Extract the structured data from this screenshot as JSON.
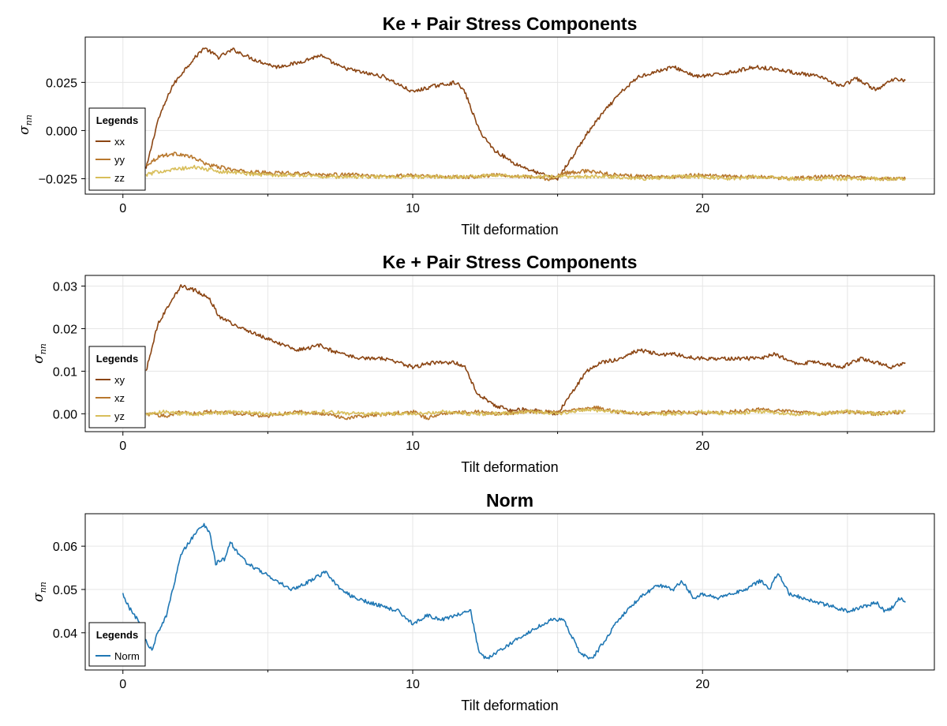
{
  "chart_data": [
    {
      "type": "line",
      "title": "Ke + Pair Stress Components",
      "xlabel": "Tilt deformation",
      "ylabel": "σ_nn",
      "xlim": [
        -1.3,
        28.0
      ],
      "ylim": [
        -0.033,
        0.0485
      ],
      "xticks": [
        0,
        10,
        20
      ],
      "xtick_labels": [
        "0",
        "10",
        "20"
      ],
      "yticks": [
        -0.025,
        0.0,
        0.025
      ],
      "ytick_labels": [
        "−0.025",
        "0.000",
        "0.025"
      ],
      "grid": true,
      "legend": {
        "title": "Legends",
        "placement": "left",
        "entries": [
          "xx",
          "yy",
          "zz"
        ]
      },
      "series": [
        {
          "name": "xx",
          "color": "#8B4513",
          "x": [
            0.8,
            1.2,
            1.7,
            2.2,
            2.8,
            3.3,
            3.8,
            4.5,
            5.3,
            6.0,
            6.8,
            7.5,
            8.3,
            9.0,
            10.0,
            10.7,
            11.5,
            11.8,
            12.3,
            12.8,
            13.5,
            14.3,
            15.0,
            15.5,
            16.0,
            16.5,
            17.2,
            17.8,
            18.5,
            19.0,
            19.8,
            20.5,
            21.2,
            21.8,
            22.5,
            23.2,
            24.0,
            24.8,
            25.3,
            26.0,
            26.4,
            26.7,
            27.0
          ],
          "y": [
            -0.02,
            0.005,
            0.023,
            0.033,
            0.043,
            0.038,
            0.042,
            0.037,
            0.033,
            0.035,
            0.039,
            0.033,
            0.03,
            0.028,
            0.02,
            0.023,
            0.025,
            0.02,
            0.0,
            -0.01,
            -0.017,
            -0.022,
            -0.025,
            -0.014,
            -0.002,
            0.008,
            0.02,
            0.028,
            0.031,
            0.033,
            0.028,
            0.029,
            0.031,
            0.033,
            0.032,
            0.03,
            0.028,
            0.023,
            0.027,
            0.021,
            0.025,
            0.027,
            0.026
          ]
        },
        {
          "name": "yy",
          "color": "#B8782E",
          "x": [
            0.8,
            1.3,
            1.9,
            2.4,
            3.0,
            4.0,
            5.0,
            6.0,
            7.0,
            8.0,
            9.0,
            10.0,
            11.0,
            12.0,
            13.0,
            14.0,
            14.7,
            15.3,
            16.0,
            17.0,
            18.0,
            19.0,
            20.0,
            21.0,
            22.0,
            23.0,
            24.0,
            25.0,
            26.0,
            26.5,
            27.0
          ],
          "y": [
            -0.018,
            -0.013,
            -0.012,
            -0.014,
            -0.018,
            -0.021,
            -0.022,
            -0.022,
            -0.023,
            -0.023,
            -0.024,
            -0.023,
            -0.024,
            -0.024,
            -0.023,
            -0.024,
            -0.025,
            -0.022,
            -0.021,
            -0.023,
            -0.024,
            -0.024,
            -0.023,
            -0.024,
            -0.024,
            -0.025,
            -0.024,
            -0.024,
            -0.025,
            -0.025,
            -0.025
          ]
        },
        {
          "name": "zz",
          "color": "#D8BE5A",
          "x": [
            0.8,
            1.3,
            1.9,
            2.5,
            3.2,
            4.0,
            5.0,
            6.0,
            7.0,
            8.0,
            9.0,
            10.0,
            11.0,
            12.0,
            13.0,
            14.0,
            15.0,
            16.0,
            17.0,
            18.0,
            19.0,
            20.0,
            21.0,
            22.0,
            23.0,
            24.0,
            25.0,
            26.0,
            26.5,
            27.0
          ],
          "y": [
            -0.023,
            -0.021,
            -0.02,
            -0.019,
            -0.021,
            -0.022,
            -0.023,
            -0.023,
            -0.024,
            -0.024,
            -0.024,
            -0.024,
            -0.024,
            -0.024,
            -0.023,
            -0.024,
            -0.024,
            -0.024,
            -0.024,
            -0.025,
            -0.024,
            -0.024,
            -0.025,
            -0.024,
            -0.025,
            -0.025,
            -0.025,
            -0.025,
            -0.025,
            -0.025
          ]
        }
      ]
    },
    {
      "type": "line",
      "title": "Ke + Pair Stress Components",
      "xlabel": "Tilt deformation",
      "ylabel": "σ_nn",
      "xlim": [
        -1.3,
        28.0
      ],
      "ylim": [
        -0.0042,
        0.0325
      ],
      "xticks": [
        0,
        10,
        20
      ],
      "xtick_labels": [
        "0",
        "10",
        "20"
      ],
      "yticks": [
        0.0,
        0.01,
        0.02,
        0.03
      ],
      "ytick_labels": [
        "0.00",
        "0.01",
        "0.02",
        "0.03"
      ],
      "grid": true,
      "legend": {
        "title": "Legends",
        "placement": "left",
        "entries": [
          "xy",
          "xz",
          "yz"
        ]
      },
      "series": [
        {
          "name": "xy",
          "color": "#8B4513",
          "x": [
            0.8,
            1.2,
            1.7,
            2.0,
            2.5,
            3.0,
            3.3,
            3.8,
            4.5,
            5.2,
            6.0,
            6.8,
            7.5,
            8.3,
            9.0,
            10.0,
            10.7,
            11.5,
            11.8,
            12.2,
            12.8,
            13.3,
            14.0,
            14.5,
            15.0,
            15.5,
            16.0,
            16.5,
            17.2,
            17.8,
            18.5,
            19.0,
            19.8,
            20.5,
            21.2,
            22.0,
            22.5,
            23.2,
            24.0,
            24.8,
            25.5,
            26.0,
            26.5,
            27.0
          ],
          "y": [
            0.01,
            0.021,
            0.027,
            0.03,
            0.029,
            0.027,
            0.023,
            0.021,
            0.019,
            0.017,
            0.015,
            0.016,
            0.014,
            0.013,
            0.013,
            0.011,
            0.012,
            0.012,
            0.011,
            0.005,
            0.002,
            0.001,
            0.001,
            0.0005,
            0.0,
            0.005,
            0.01,
            0.012,
            0.013,
            0.015,
            0.014,
            0.014,
            0.013,
            0.013,
            0.013,
            0.013,
            0.014,
            0.012,
            0.012,
            0.011,
            0.013,
            0.012,
            0.011,
            0.012
          ]
        },
        {
          "name": "xz",
          "color": "#B8782E",
          "x": [
            0.8,
            1.5,
            2.0,
            2.5,
            3.0,
            4.0,
            5.0,
            6.0,
            7.0,
            7.7,
            8.5,
            9.2,
            10.0,
            10.5,
            11.0,
            12.0,
            13.0,
            14.0,
            15.0,
            15.7,
            16.3,
            17.0,
            18.0,
            19.0,
            20.0,
            21.0,
            22.0,
            23.0,
            24.0,
            25.0,
            26.0,
            27.0
          ],
          "y": [
            0.0,
            -0.0005,
            0.0005,
            0.0,
            0.0005,
            0.0,
            -0.0005,
            0.0005,
            0.0,
            -0.001,
            -0.0005,
            0.0,
            0.0005,
            -0.001,
            0.0,
            0.0005,
            0.0,
            0.0005,
            0.0005,
            0.001,
            0.0015,
            0.0005,
            0.0,
            0.0005,
            0.0,
            0.0005,
            0.001,
            0.0005,
            0.0,
            0.0005,
            0.0,
            0.0005
          ]
        },
        {
          "name": "yz",
          "color": "#D8BE5A",
          "x": [
            0.8,
            1.5,
            2.0,
            3.0,
            4.0,
            5.0,
            6.0,
            7.0,
            8.0,
            9.0,
            10.0,
            11.0,
            12.0,
            13.0,
            14.0,
            15.0,
            16.0,
            17.0,
            18.0,
            19.0,
            20.0,
            21.0,
            22.0,
            23.0,
            24.0,
            25.0,
            26.0,
            27.0
          ],
          "y": [
            0.0,
            0.0005,
            0.0,
            0.0,
            0.0005,
            0.0,
            0.0,
            0.0005,
            0.0,
            0.0,
            0.0,
            0.0005,
            0.0,
            0.0,
            0.0005,
            0.0,
            0.001,
            0.0005,
            0.0,
            0.0,
            0.0005,
            0.0,
            0.0005,
            0.0,
            0.0,
            0.0005,
            0.0,
            0.0005
          ]
        }
      ]
    },
    {
      "type": "line",
      "title": "Norm",
      "xlabel": "Tilt deformation",
      "ylabel": "σ_nn",
      "xlim": [
        -1.3,
        28.0
      ],
      "ylim": [
        0.0314,
        0.0675
      ],
      "xticks": [
        0,
        10,
        20
      ],
      "xtick_labels": [
        "0",
        "10",
        "20"
      ],
      "yticks": [
        0.04,
        0.05,
        0.06
      ],
      "ytick_labels": [
        "0.04",
        "0.05",
        "0.06"
      ],
      "grid": true,
      "legend": {
        "title": "Legends",
        "placement": "bottom-left",
        "entries": [
          "Norm"
        ]
      },
      "series": [
        {
          "name": "Norm",
          "color": "#1F77B4",
          "x": [
            0.0,
            0.2,
            0.4,
            0.6,
            0.8,
            1.0,
            1.2,
            1.5,
            1.8,
            2.0,
            2.3,
            2.6,
            2.8,
            3.0,
            3.2,
            3.5,
            3.7,
            4.0,
            4.3,
            4.8,
            5.3,
            5.8,
            6.2,
            6.7,
            7.0,
            7.5,
            8.0,
            8.5,
            9.0,
            9.5,
            10.0,
            10.5,
            11.0,
            11.5,
            12.0,
            12.3,
            12.6,
            13.0,
            13.5,
            14.0,
            14.5,
            14.8,
            15.2,
            15.5,
            15.8,
            16.2,
            16.6,
            17.0,
            17.5,
            18.0,
            18.5,
            19.0,
            19.3,
            19.7,
            20.0,
            20.5,
            21.0,
            21.5,
            22.0,
            22.3,
            22.6,
            23.0,
            23.5,
            24.0,
            24.5,
            25.0,
            25.5,
            26.0,
            26.3,
            26.6,
            26.8,
            27.0
          ],
          "y": [
            0.049,
            0.046,
            0.044,
            0.042,
            0.038,
            0.036,
            0.04,
            0.044,
            0.052,
            0.058,
            0.061,
            0.064,
            0.065,
            0.063,
            0.056,
            0.057,
            0.061,
            0.058,
            0.056,
            0.054,
            0.052,
            0.05,
            0.051,
            0.053,
            0.054,
            0.05,
            0.048,
            0.047,
            0.046,
            0.045,
            0.042,
            0.044,
            0.043,
            0.044,
            0.045,
            0.035,
            0.034,
            0.036,
            0.038,
            0.04,
            0.042,
            0.043,
            0.043,
            0.039,
            0.035,
            0.034,
            0.038,
            0.042,
            0.046,
            0.049,
            0.051,
            0.05,
            0.052,
            0.048,
            0.049,
            0.048,
            0.049,
            0.05,
            0.052,
            0.05,
            0.054,
            0.049,
            0.048,
            0.047,
            0.046,
            0.045,
            0.046,
            0.047,
            0.045,
            0.046,
            0.048,
            0.047
          ]
        }
      ]
    }
  ]
}
